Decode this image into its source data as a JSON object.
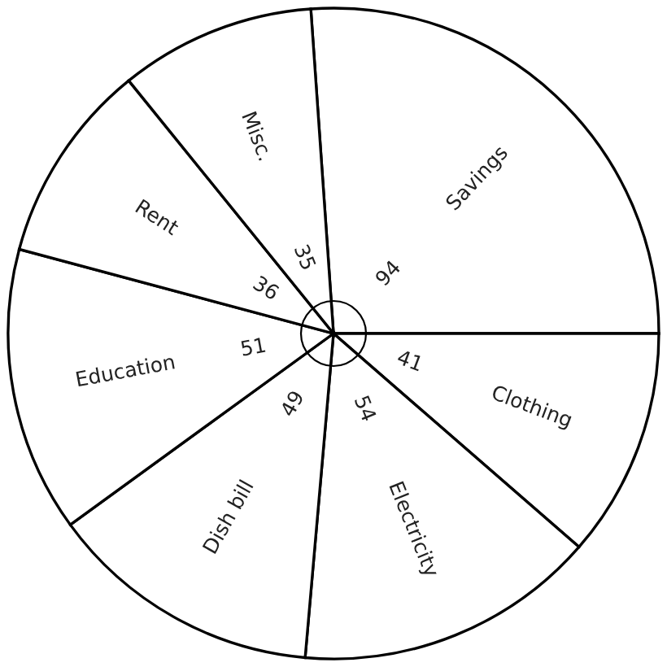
{
  "chart_data": {
    "type": "pie",
    "categories": [
      "Savings",
      "Clothing",
      "Electricity",
      "Dish bill",
      "Education",
      "Rent",
      "Misc."
    ],
    "values": [
      94,
      41,
      54,
      49,
      51,
      36,
      35
    ],
    "colors": [
      "#ffffff",
      "#ffffff",
      "#ffffff",
      "#ffffff",
      "#ffffff",
      "#ffffff",
      "#ffffff"
    ],
    "data_labels": true
  }
}
